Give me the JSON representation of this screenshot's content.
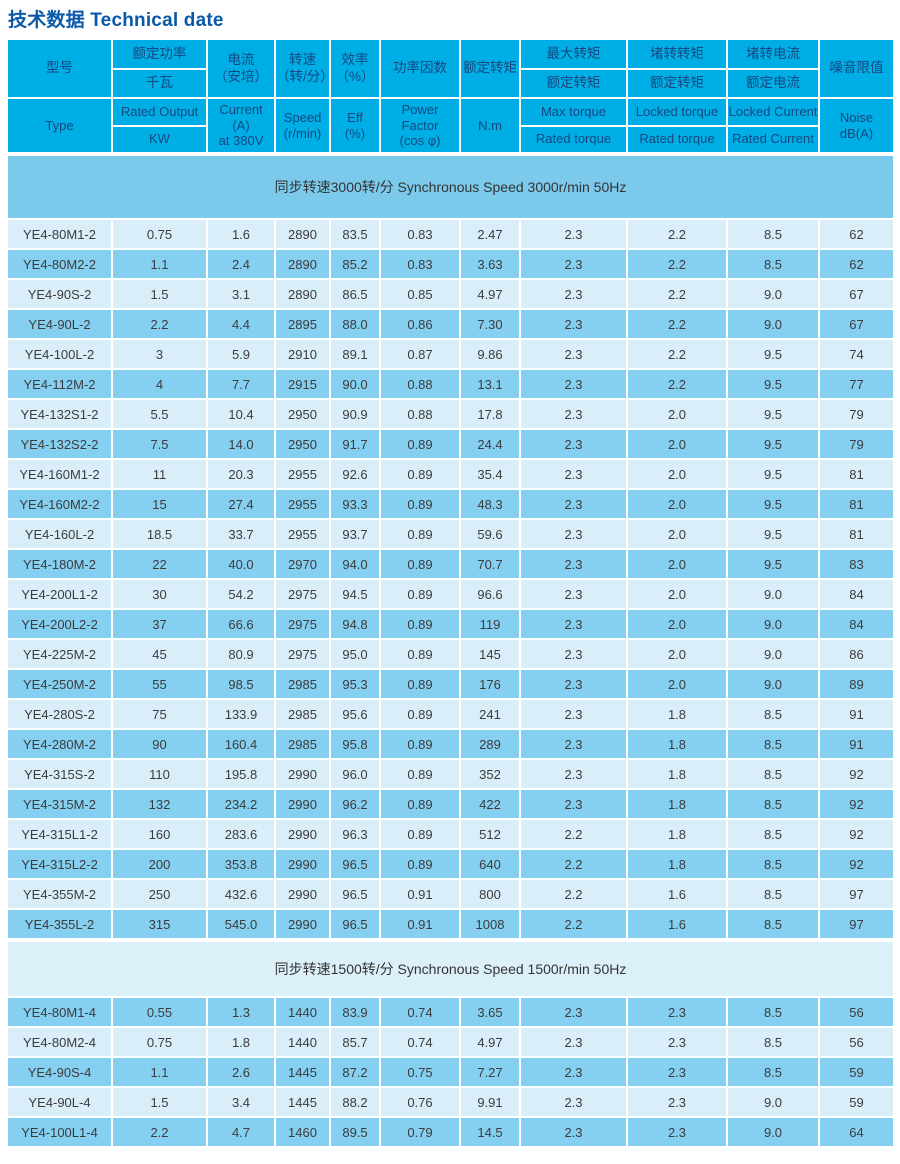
{
  "title": "技术数据 Technical date",
  "colors": {
    "title_text": "#0A58A8",
    "header_bg": "#00AEE6",
    "header_text": "#17477F",
    "band_blue_bg": "#7BCAEC",
    "band_light_bg": "#DCF0FA",
    "row_light_bg": "#D9EEF9",
    "row_dark_bg": "#85CFF1",
    "data_text": "#3C3C3C"
  },
  "table": {
    "header": {
      "zh": [
        {
          "lines": [
            "型号"
          ]
        },
        {
          "stack": [
            "额定功率",
            "千瓦"
          ]
        },
        {
          "lines": [
            "电流",
            "（安培）"
          ]
        },
        {
          "lines": [
            "转速",
            "（转/分）"
          ]
        },
        {
          "lines": [
            "效率",
            "（%）"
          ]
        },
        {
          "lines": [
            "功率因数"
          ]
        },
        {
          "lines": [
            "额定转矩"
          ]
        },
        {
          "stack": [
            "最大转矩",
            "额定转矩"
          ]
        },
        {
          "stack": [
            "堵转转矩",
            "额定转矩"
          ]
        },
        {
          "stack": [
            "堵转电流",
            "额定电流"
          ]
        },
        {
          "lines": [
            "噪音限值"
          ]
        }
      ],
      "en": [
        {
          "lines": [
            "Type"
          ]
        },
        {
          "stack": [
            "Rated Output",
            "KW"
          ]
        },
        {
          "lines": [
            "Current",
            "(A)",
            "at 380V"
          ]
        },
        {
          "lines": [
            "Speed",
            "(r/min)"
          ]
        },
        {
          "lines": [
            "Eff",
            "(%)"
          ]
        },
        {
          "lines": [
            "Power",
            "Factor",
            "(cos φ)"
          ]
        },
        {
          "lines": [
            "N.m"
          ]
        },
        {
          "stack": [
            "Max torque",
            "Rated torque"
          ]
        },
        {
          "stack": [
            "Locked torque",
            "Rated torque"
          ]
        },
        {
          "stack": [
            "Locked Current",
            "Rated Current"
          ]
        },
        {
          "lines": [
            "Noise",
            "dB(A)"
          ]
        }
      ]
    },
    "sections": [
      {
        "label": "同步转速3000转/分 Synchronous Speed 3000r/min 50Hz",
        "band_style": "blue",
        "zebra_offset": 0,
        "rows": [
          [
            "YE4-80M1-2",
            "0.75",
            "1.6",
            "2890",
            "83.5",
            "0.83",
            "2.47",
            "2.3",
            "2.2",
            "8.5",
            "62"
          ],
          [
            "YE4-80M2-2",
            "1.1",
            "2.4",
            "2890",
            "85.2",
            "0.83",
            "3.63",
            "2.3",
            "2.2",
            "8.5",
            "62"
          ],
          [
            "YE4-90S-2",
            "1.5",
            "3.1",
            "2890",
            "86.5",
            "0.85",
            "4.97",
            "2.3",
            "2.2",
            "9.0",
            "67"
          ],
          [
            "YE4-90L-2",
            "2.2",
            "4.4",
            "2895",
            "88.0",
            "0.86",
            "7.30",
            "2.3",
            "2.2",
            "9.0",
            "67"
          ],
          [
            "YE4-100L-2",
            "3",
            "5.9",
            "2910",
            "89.1",
            "0.87",
            "9.86",
            "2.3",
            "2.2",
            "9.5",
            "74"
          ],
          [
            "YE4-112M-2",
            "4",
            "7.7",
            "2915",
            "90.0",
            "0.88",
            "13.1",
            "2.3",
            "2.2",
            "9.5",
            "77"
          ],
          [
            "YE4-132S1-2",
            "5.5",
            "10.4",
            "2950",
            "90.9",
            "0.88",
            "17.8",
            "2.3",
            "2.0",
            "9.5",
            "79"
          ],
          [
            "YE4-132S2-2",
            "7.5",
            "14.0",
            "2950",
            "91.7",
            "0.89",
            "24.4",
            "2.3",
            "2.0",
            "9.5",
            "79"
          ],
          [
            "YE4-160M1-2",
            "11",
            "20.3",
            "2955",
            "92.6",
            "0.89",
            "35.4",
            "2.3",
            "2.0",
            "9.5",
            "81"
          ],
          [
            "YE4-160M2-2",
            "15",
            "27.4",
            "2955",
            "93.3",
            "0.89",
            "48.3",
            "2.3",
            "2.0",
            "9.5",
            "81"
          ],
          [
            "YE4-160L-2",
            "18.5",
            "33.7",
            "2955",
            "93.7",
            "0.89",
            "59.6",
            "2.3",
            "2.0",
            "9.5",
            "81"
          ],
          [
            "YE4-180M-2",
            "22",
            "40.0",
            "2970",
            "94.0",
            "0.89",
            "70.7",
            "2.3",
            "2.0",
            "9.5",
            "83"
          ],
          [
            "YE4-200L1-2",
            "30",
            "54.2",
            "2975",
            "94.5",
            "0.89",
            "96.6",
            "2.3",
            "2.0",
            "9.0",
            "84"
          ],
          [
            "YE4-200L2-2",
            "37",
            "66.6",
            "2975",
            "94.8",
            "0.89",
            "119",
            "2.3",
            "2.0",
            "9.0",
            "84"
          ],
          [
            "YE4-225M-2",
            "45",
            "80.9",
            "2975",
            "95.0",
            "0.89",
            "145",
            "2.3",
            "2.0",
            "9.0",
            "86"
          ],
          [
            "YE4-250M-2",
            "55",
            "98.5",
            "2985",
            "95.3",
            "0.89",
            "176",
            "2.3",
            "2.0",
            "9.0",
            "89"
          ],
          [
            "YE4-280S-2",
            "75",
            "133.9",
            "2985",
            "95.6",
            "0.89",
            "241",
            "2.3",
            "1.8",
            "8.5",
            "91"
          ],
          [
            "YE4-280M-2",
            "90",
            "160.4",
            "2985",
            "95.8",
            "0.89",
            "289",
            "2.3",
            "1.8",
            "8.5",
            "91"
          ],
          [
            "YE4-315S-2",
            "110",
            "195.8",
            "2990",
            "96.0",
            "0.89",
            "352",
            "2.3",
            "1.8",
            "8.5",
            "92"
          ],
          [
            "YE4-315M-2",
            "132",
            "234.2",
            "2990",
            "96.2",
            "0.89",
            "422",
            "2.3",
            "1.8",
            "8.5",
            "92"
          ],
          [
            "YE4-315L1-2",
            "160",
            "283.6",
            "2990",
            "96.3",
            "0.89",
            "512",
            "2.2",
            "1.8",
            "8.5",
            "92"
          ],
          [
            "YE4-315L2-2",
            "200",
            "353.8",
            "2990",
            "96.5",
            "0.89",
            "640",
            "2.2",
            "1.8",
            "8.5",
            "92"
          ],
          [
            "YE4-355M-2",
            "250",
            "432.6",
            "2990",
            "96.5",
            "0.91",
            "800",
            "2.2",
            "1.6",
            "8.5",
            "97"
          ],
          [
            "YE4-355L-2",
            "315",
            "545.0",
            "2990",
            "96.5",
            "0.91",
            "1008",
            "2.2",
            "1.6",
            "8.5",
            "97"
          ]
        ]
      },
      {
        "label": "同步转速1500转/分 Synchronous Speed 1500r/min 50Hz",
        "band_style": "light",
        "zebra_offset": 1,
        "rows": [
          [
            "YE4-80M1-4",
            "0.55",
            "1.3",
            "1440",
            "83.9",
            "0.74",
            "3.65",
            "2.3",
            "2.3",
            "8.5",
            "56"
          ],
          [
            "YE4-80M2-4",
            "0.75",
            "1.8",
            "1440",
            "85.7",
            "0.74",
            "4.97",
            "2.3",
            "2.3",
            "8.5",
            "56"
          ],
          [
            "YE4-90S-4",
            "1.1",
            "2.6",
            "1445",
            "87.2",
            "0.75",
            "7.27",
            "2.3",
            "2.3",
            "8.5",
            "59"
          ],
          [
            "YE4-90L-4",
            "1.5",
            "3.4",
            "1445",
            "88.2",
            "0.76",
            "9.91",
            "2.3",
            "2.3",
            "9.0",
            "59"
          ],
          [
            "YE4-100L1-4",
            "2.2",
            "4.7",
            "1460",
            "89.5",
            "0.79",
            "14.5",
            "2.3",
            "2.3",
            "9.0",
            "64"
          ]
        ]
      }
    ]
  }
}
